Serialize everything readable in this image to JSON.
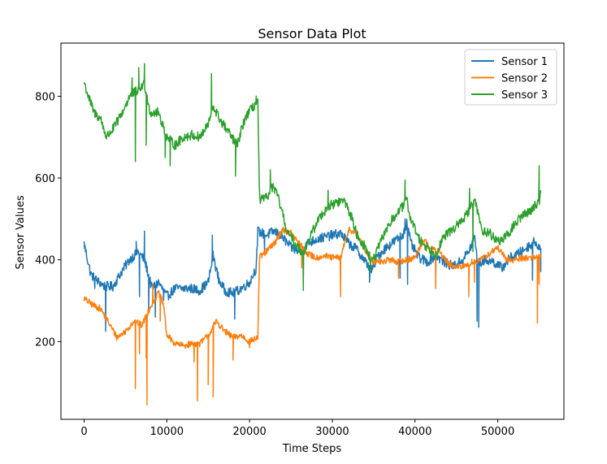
{
  "chart_data": {
    "type": "line",
    "title": "Sensor Data Plot",
    "xlabel": "Time Steps",
    "ylabel": "Sensor Values",
    "xlim": [
      -2800,
      58000
    ],
    "ylim": [
      10,
      930
    ],
    "xticks": [
      0,
      10000,
      20000,
      30000,
      40000,
      50000
    ],
    "yticks": [
      200,
      400,
      600,
      800
    ],
    "grid": false,
    "legend_position": "top-right",
    "series": [
      {
        "name": "Sensor 1",
        "color": "#1f77b4",
        "noise": 12,
        "points": [
          [
            0,
            440
          ],
          [
            800,
            365
          ],
          [
            1500,
            350
          ],
          [
            2500,
            335
          ],
          [
            3500,
            335
          ],
          [
            4500,
            370
          ],
          [
            5500,
            400
          ],
          [
            6500,
            420
          ],
          [
            7300,
            400
          ],
          [
            8200,
            330
          ],
          [
            9000,
            345
          ],
          [
            10000,
            310
          ],
          [
            11000,
            330
          ],
          [
            12000,
            330
          ],
          [
            13000,
            330
          ],
          [
            14000,
            325
          ],
          [
            15000,
            345
          ],
          [
            15600,
            410
          ],
          [
            16300,
            350
          ],
          [
            17000,
            325
          ],
          [
            18000,
            318
          ],
          [
            19000,
            330
          ],
          [
            20000,
            345
          ],
          [
            20800,
            380
          ],
          [
            21000,
            470
          ],
          [
            22000,
            460
          ],
          [
            23000,
            470
          ],
          [
            24000,
            455
          ],
          [
            25000,
            430
          ],
          [
            26000,
            420
          ],
          [
            27000,
            440
          ],
          [
            28000,
            450
          ],
          [
            29000,
            455
          ],
          [
            30000,
            460
          ],
          [
            31000,
            465
          ],
          [
            32000,
            440
          ],
          [
            33000,
            425
          ],
          [
            34000,
            395
          ],
          [
            34800,
            375
          ],
          [
            35500,
            410
          ],
          [
            36500,
            430
          ],
          [
            37500,
            445
          ],
          [
            38500,
            460
          ],
          [
            39000,
            490
          ],
          [
            39500,
            440
          ],
          [
            40500,
            405
          ],
          [
            41500,
            395
          ],
          [
            42500,
            410
          ],
          [
            43500,
            395
          ],
          [
            44500,
            385
          ],
          [
            45500,
            395
          ],
          [
            46500,
            420
          ],
          [
            47200,
            455
          ],
          [
            47600,
            390
          ],
          [
            48500,
            400
          ],
          [
            49500,
            395
          ],
          [
            50500,
            380
          ],
          [
            51500,
            405
          ],
          [
            52500,
            415
          ],
          [
            53500,
            430
          ],
          [
            54500,
            445
          ],
          [
            55200,
            425
          ]
        ],
        "spikes": [
          [
            1300,
            330
          ],
          [
            2600,
            225
          ],
          [
            6300,
            445
          ],
          [
            6700,
            310
          ],
          [
            7300,
            470
          ],
          [
            7800,
            280
          ],
          [
            8600,
            260
          ],
          [
            9600,
            300
          ],
          [
            15500,
            460
          ],
          [
            18200,
            255
          ],
          [
            21800,
            425
          ],
          [
            26500,
            360
          ],
          [
            34500,
            345
          ],
          [
            38200,
            355
          ],
          [
            38800,
            500
          ],
          [
            39100,
            340
          ],
          [
            42500,
            360
          ],
          [
            47500,
            250
          ],
          [
            47700,
            235
          ],
          [
            54200,
            350
          ],
          [
            55200,
            370
          ]
        ]
      },
      {
        "name": "Sensor 2",
        "color": "#ff7f0e",
        "noise": 8,
        "points": [
          [
            0,
            305
          ],
          [
            1000,
            290
          ],
          [
            2000,
            280
          ],
          [
            3000,
            245
          ],
          [
            4000,
            210
          ],
          [
            5000,
            225
          ],
          [
            6000,
            250
          ],
          [
            7000,
            240
          ],
          [
            8000,
            285
          ],
          [
            9000,
            320
          ],
          [
            9600,
            290
          ],
          [
            10000,
            215
          ],
          [
            11000,
            195
          ],
          [
            12000,
            190
          ],
          [
            13000,
            195
          ],
          [
            14000,
            195
          ],
          [
            15000,
            215
          ],
          [
            16000,
            250
          ],
          [
            17000,
            225
          ],
          [
            18000,
            210
          ],
          [
            19000,
            215
          ],
          [
            20000,
            200
          ],
          [
            21000,
            210
          ],
          [
            21200,
            405
          ],
          [
            22000,
            420
          ],
          [
            23000,
            440
          ],
          [
            24000,
            475
          ],
          [
            25000,
            465
          ],
          [
            26000,
            440
          ],
          [
            27000,
            415
          ],
          [
            28000,
            405
          ],
          [
            29000,
            410
          ],
          [
            30000,
            405
          ],
          [
            31000,
            405
          ],
          [
            32000,
            475
          ],
          [
            33000,
            465
          ],
          [
            34000,
            420
          ],
          [
            35000,
            395
          ],
          [
            36000,
            395
          ],
          [
            37000,
            400
          ],
          [
            38000,
            395
          ],
          [
            39000,
            400
          ],
          [
            40000,
            405
          ],
          [
            41000,
            450
          ],
          [
            42000,
            425
          ],
          [
            43000,
            420
          ],
          [
            44000,
            390
          ],
          [
            45000,
            380
          ],
          [
            46000,
            385
          ],
          [
            47000,
            395
          ],
          [
            48000,
            400
          ],
          [
            49000,
            415
          ],
          [
            50000,
            430
          ],
          [
            51000,
            400
          ],
          [
            52000,
            400
          ],
          [
            53000,
            405
          ],
          [
            54000,
            405
          ],
          [
            55200,
            410
          ]
        ],
        "spikes": [
          [
            6200,
            85
          ],
          [
            6700,
            170
          ],
          [
            7500,
            160
          ],
          [
            7600,
            45
          ],
          [
            8300,
            340
          ],
          [
            9200,
            250
          ],
          [
            13300,
            150
          ],
          [
            13700,
            55
          ],
          [
            15000,
            95
          ],
          [
            15600,
            65
          ],
          [
            18000,
            155
          ],
          [
            20000,
            185
          ],
          [
            26300,
            380
          ],
          [
            31000,
            310
          ],
          [
            38000,
            355
          ],
          [
            42500,
            330
          ],
          [
            46500,
            310
          ],
          [
            47200,
            345
          ],
          [
            54800,
            245
          ],
          [
            55000,
            340
          ]
        ]
      },
      {
        "name": "Sensor 3",
        "color": "#2ca02c",
        "noise": 12,
        "points": [
          [
            0,
            835
          ],
          [
            500,
            800
          ],
          [
            1200,
            760
          ],
          [
            2000,
            745
          ],
          [
            2700,
            700
          ],
          [
            3500,
            720
          ],
          [
            4500,
            755
          ],
          [
            5500,
            800
          ],
          [
            6500,
            815
          ],
          [
            7300,
            830
          ],
          [
            8000,
            760
          ],
          [
            9000,
            760
          ],
          [
            10000,
            700
          ],
          [
            11000,
            680
          ],
          [
            12000,
            700
          ],
          [
            13000,
            705
          ],
          [
            14000,
            700
          ],
          [
            15000,
            730
          ],
          [
            15600,
            775
          ],
          [
            16500,
            740
          ],
          [
            17500,
            710
          ],
          [
            18500,
            680
          ],
          [
            19500,
            750
          ],
          [
            20500,
            775
          ],
          [
            21000,
            790
          ],
          [
            21200,
            545
          ],
          [
            22000,
            550
          ],
          [
            22800,
            580
          ],
          [
            23500,
            550
          ],
          [
            24500,
            470
          ],
          [
            25500,
            440
          ],
          [
            26500,
            415
          ],
          [
            27500,
            465
          ],
          [
            28500,
            505
          ],
          [
            29500,
            530
          ],
          [
            30500,
            540
          ],
          [
            31500,
            545
          ],
          [
            32300,
            505
          ],
          [
            33000,
            460
          ],
          [
            34000,
            430
          ],
          [
            34800,
            395
          ],
          [
            35500,
            425
          ],
          [
            36500,
            475
          ],
          [
            37500,
            505
          ],
          [
            38500,
            530
          ],
          [
            39000,
            545
          ],
          [
            39500,
            500
          ],
          [
            40500,
            450
          ],
          [
            41500,
            430
          ],
          [
            42500,
            415
          ],
          [
            43500,
            455
          ],
          [
            44500,
            475
          ],
          [
            45500,
            490
          ],
          [
            46500,
            520
          ],
          [
            47300,
            545
          ],
          [
            48000,
            475
          ],
          [
            49000,
            465
          ],
          [
            50000,
            445
          ],
          [
            51000,
            455
          ],
          [
            52000,
            485
          ],
          [
            53000,
            510
          ],
          [
            54000,
            520
          ],
          [
            55000,
            545
          ],
          [
            55200,
            560
          ]
        ],
        "spikes": [
          [
            5800,
            845
          ],
          [
            6200,
            640
          ],
          [
            6600,
            870
          ],
          [
            7300,
            880
          ],
          [
            7500,
            680
          ],
          [
            9800,
            650
          ],
          [
            10400,
            630
          ],
          [
            15400,
            855
          ],
          [
            18300,
            605
          ],
          [
            20800,
            800
          ],
          [
            22500,
            620
          ],
          [
            26500,
            325
          ],
          [
            29500,
            570
          ],
          [
            34600,
            370
          ],
          [
            38800,
            595
          ],
          [
            40500,
            460
          ],
          [
            42500,
            410
          ],
          [
            46600,
            575
          ],
          [
            47000,
            420
          ],
          [
            55000,
            630
          ]
        ]
      }
    ]
  }
}
